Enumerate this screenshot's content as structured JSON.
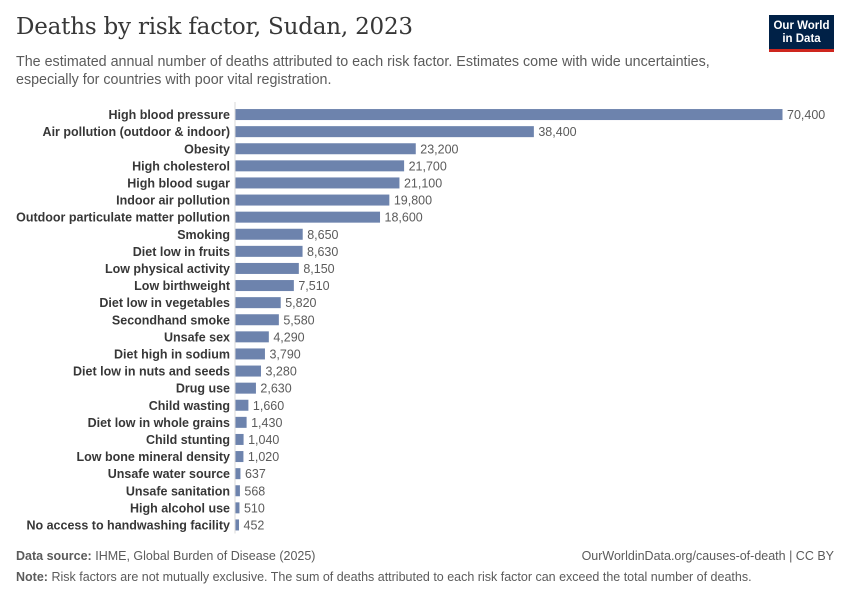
{
  "header": {
    "title": "Deaths by risk factor, Sudan, 2023",
    "subtitle": "The estimated annual number of deaths attributed to each risk factor. Estimates come with wide uncertainties, especially for countries with poor vital registration.",
    "logo_line1": "Our World",
    "logo_line2": "in Data"
  },
  "footer": {
    "source_label": "Data source:",
    "source_text": "IHME, Global Burden of Disease (2025)",
    "url": "OurWorldinData.org/causes-of-death | CC BY",
    "note_label": "Note:",
    "note_text": "Risk factors are not mutually exclusive. The sum of deaths attributed to each risk factor can exceed the total number of deaths."
  },
  "colors": {
    "bar": "#6d83ad",
    "axis": "#dadada",
    "label": "#373737",
    "value": "#5b5b5b"
  },
  "chart_data": {
    "type": "bar",
    "orientation": "horizontal",
    "categories": [
      "High blood pressure",
      "Air pollution (outdoor & indoor)",
      "Obesity",
      "High cholesterol",
      "High blood sugar",
      "Indoor air pollution",
      "Outdoor particulate matter pollution",
      "Smoking",
      "Diet low in fruits",
      "Low physical activity",
      "Low birthweight",
      "Diet low in vegetables",
      "Secondhand smoke",
      "Unsafe sex",
      "Diet high in sodium",
      "Diet low in nuts and seeds",
      "Drug use",
      "Child wasting",
      "Diet low in whole grains",
      "Child stunting",
      "Low bone mineral density",
      "Unsafe water source",
      "Unsafe sanitation",
      "High alcohol use",
      "No access to handwashing facility"
    ],
    "values": [
      70400,
      38400,
      23200,
      21700,
      21100,
      19800,
      18600,
      8650,
      8630,
      8150,
      7510,
      5820,
      5580,
      4290,
      3790,
      3280,
      2630,
      1660,
      1430,
      1040,
      1020,
      637,
      568,
      510,
      452
    ],
    "value_labels": [
      "70,400",
      "38,400",
      "23,200",
      "21,700",
      "21,100",
      "19,800",
      "18,600",
      "8,650",
      "8,630",
      "8,150",
      "7,510",
      "5,820",
      "5,580",
      "4,290",
      "3,790",
      "3,280",
      "2,630",
      "1,660",
      "1,430",
      "1,040",
      "1,020",
      "637",
      "568",
      "510",
      "452"
    ],
    "xlim": [
      0,
      70400
    ]
  }
}
